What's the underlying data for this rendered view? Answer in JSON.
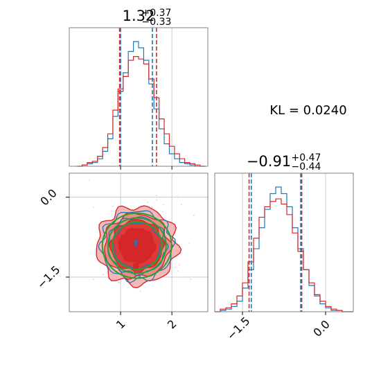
{
  "colors": {
    "blue": "#1f77b4",
    "red": "#d62728",
    "green": "#2ca02c",
    "frame": "#808080",
    "grid": "#c8c8c8"
  },
  "titles": {
    "p1": {
      "value": "1.32",
      "sup": "+0.37",
      "sub": "−0.33"
    },
    "p2": {
      "value": "−0.91",
      "sup": "+0.47",
      "sub": "−0.44"
    }
  },
  "kl_label": "KL = 0.0240",
  "chart_data": [
    {
      "type": "histogram",
      "panel": "marginal-p1",
      "xlim": [
        0.0,
        2.7
      ],
      "x_ticks": [
        1,
        2
      ],
      "grid": true,
      "x": [
        0.2,
        0.3,
        0.4,
        0.5,
        0.6,
        0.7,
        0.8,
        0.9,
        1.0,
        1.1,
        1.2,
        1.3,
        1.4,
        1.5,
        1.6,
        1.7,
        1.8,
        1.9,
        2.0,
        2.1,
        2.2,
        2.3,
        2.4,
        2.5,
        2.6
      ],
      "series": [
        {
          "color": "blue",
          "values": [
            0,
            1,
            2,
            3,
            6,
            12,
            22,
            40,
            60,
            75,
            92,
            100,
            95,
            85,
            66,
            46,
            30,
            18,
            10,
            6,
            3,
            2,
            1,
            0,
            0
          ]
        },
        {
          "color": "red",
          "values": [
            0,
            1,
            3,
            4,
            8,
            15,
            26,
            45,
            62,
            72,
            85,
            88,
            86,
            82,
            70,
            55,
            38,
            26,
            16,
            10,
            6,
            3,
            2,
            1,
            0
          ]
        }
      ],
      "quantile_lines": [
        {
          "color": "red",
          "values": [
            0.98,
            1.7
          ]
        },
        {
          "color": "blue",
          "values": [
            1.0,
            1.62
          ]
        }
      ]
    },
    {
      "type": "contour",
      "panel": "joint-p1-p2",
      "xlim": [
        0.0,
        2.7
      ],
      "ylim": [
        -2.15,
        0.45
      ],
      "x_ticks": [
        1,
        2
      ],
      "x_tick_labels": [
        "1",
        "2"
      ],
      "y_ticks": [
        0.0,
        -1.5
      ],
      "y_tick_labels": [
        "0.0",
        "−1.5"
      ],
      "grid": true,
      "center": [
        1.32,
        -0.91
      ],
      "markers": [
        {
          "color": "blue",
          "x": 1.32,
          "y": -0.86
        },
        {
          "color": "red",
          "x": 1.38,
          "y": -0.88
        },
        {
          "color": "red",
          "x": 1.06,
          "y": -0.76
        },
        {
          "color": "red",
          "x": 1.3,
          "y": -1.29
        }
      ]
    },
    {
      "type": "histogram",
      "panel": "marginal-p2",
      "xlim": [
        -2.0,
        0.5
      ],
      "x_ticks": [
        -1.5,
        0.0
      ],
      "x_tick_labels": [
        "−1.5",
        "0.0"
      ],
      "grid": true,
      "x": [
        -1.95,
        -1.85,
        -1.75,
        -1.65,
        -1.55,
        -1.45,
        -1.35,
        -1.25,
        -1.15,
        -1.05,
        -0.95,
        -0.85,
        -0.75,
        -0.65,
        -0.55,
        -0.45,
        -0.35,
        -0.25,
        -0.15,
        -0.05,
        0.05,
        0.15,
        0.25,
        0.35,
        0.45
      ],
      "series": [
        {
          "color": "blue",
          "values": [
            0,
            1,
            2,
            4,
            8,
            18,
            32,
            48,
            64,
            78,
            90,
            95,
            90,
            80,
            64,
            48,
            32,
            20,
            12,
            6,
            3,
            1,
            1,
            0,
            0
          ]
        },
        {
          "color": "red",
          "values": [
            0,
            2,
            3,
            6,
            12,
            22,
            38,
            56,
            72,
            80,
            84,
            86,
            82,
            74,
            60,
            46,
            32,
            22,
            13,
            8,
            4,
            2,
            1,
            0,
            0
          ]
        }
      ],
      "quantile_lines": [
        {
          "color": "red",
          "values": [
            -1.38,
            -0.43
          ]
        },
        {
          "color": "blue",
          "values": [
            -1.34,
            -0.45
          ]
        }
      ]
    }
  ]
}
